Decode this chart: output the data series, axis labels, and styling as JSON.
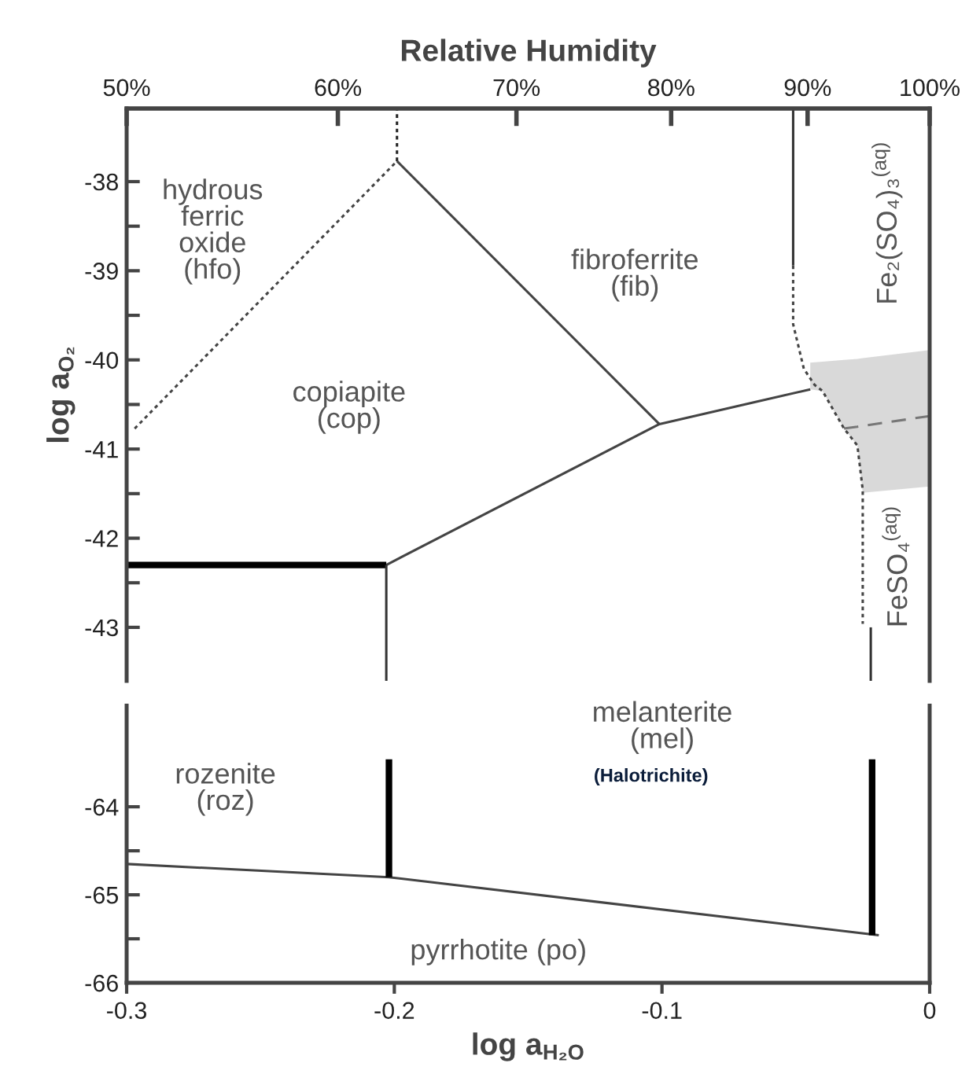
{
  "chart_data": [
    {
      "type": "line",
      "x2label": "Relative Humidity",
      "ylabel": "log a$_{O₂}$",
      "tick_labels": "y",
      "xlim": [
        -0.3,
        0
      ],
      "ylim": [
        -43.6,
        -37.18
      ],
      "log": "x2",
      "x2lim": [
        50,
        100
      ],
      "x2ticks": [
        {
          "value": 50,
          "label": "50%"
        },
        {
          "value": 60,
          "label": "60%"
        },
        {
          "value": 70,
          "label": "70%"
        },
        {
          "value": 80,
          "label": "80%"
        },
        {
          "value": 90,
          "label": "90%"
        },
        {
          "value": 100,
          "label": "100%"
        }
      ],
      "yticks": [
        -38,
        {
          "value": -38.5,
          "label": null
        },
        -39,
        {
          "value": -39.5,
          "label": null
        },
        -40,
        {
          "value": -40.5,
          "label": null
        },
        -41,
        {
          "value": -41.5,
          "label": null
        },
        -42,
        {
          "value": -42.5,
          "label": null
        },
        -43
      ],
      "series": [
        {
          "color": "#777777",
          "line_style": "dashed",
          "x": [
            -0.0446,
            -0.04,
            -0.032,
            -0.027,
            -0.025,
            0
          ],
          "values": [
            null,
            null,
            -40.77,
            -40.75,
            -40.74,
            -40.63
          ],
          "upper": [
            -40.03,
            -40.02,
            -40.0,
            -39.99,
            -39.98,
            -39.89
          ],
          "lower": [
            -40.33,
            -40.35,
            -40.77,
            -40.96,
            -41.49,
            -41.42
          ]
        },
        {
          "color": "#444444",
          "line_style": "dotted",
          "x": [
            -0.297,
            -0.199
          ],
          "values": [
            -40.77,
            -37.77
          ]
        },
        {
          "color": "#222222",
          "line_style": "dotted",
          "x": [
            -0.199,
            -0.199
          ],
          "values": [
            -37.77,
            -37.18
          ]
        },
        {
          "color": "#444444",
          "line_style": "solid",
          "x": [
            -0.199,
            -0.101,
            -0.0446
          ],
          "values": [
            -37.77,
            -40.72,
            -40.33
          ]
        },
        {
          "color": "#444444",
          "line_style": "solid",
          "x": [
            -0.101,
            -0.203
          ],
          "values": [
            -40.72,
            -42.3
          ]
        },
        {
          "color": "#000000",
          "line_style": "solid",
          "x": [
            -0.3,
            -0.203
          ],
          "values": [
            -42.3,
            -42.3
          ]
        },
        {
          "color": "#333333",
          "line_style": "solid",
          "x": [
            -0.203,
            -0.203
          ],
          "values": [
            -42.3,
            -43.6
          ]
        },
        {
          "color": "#333333",
          "line_style": "solid",
          "x": [
            -0.051,
            -0.051
          ],
          "values": [
            -37.18,
            -38.94
          ]
        },
        {
          "color": "#444444",
          "line_style": "dotted",
          "x": [
            -0.051,
            -0.051,
            -0.047,
            -0.043,
            -0.04,
            -0.032,
            -0.027,
            -0.025,
            -0.025
          ],
          "values": [
            -38.94,
            -39.6,
            -40.1,
            -40.28,
            -40.35,
            -40.77,
            -40.96,
            -41.46,
            -42.96
          ]
        },
        {
          "color": "#333333",
          "line_style": "solid",
          "x": [
            -0.022,
            -0.022
          ],
          "values": [
            -43.0,
            -43.6
          ]
        }
      ],
      "annotations": [
        "hydrous\nferric\noxide\n(hfo)",
        "fibroferrite\n(fib)",
        "copiapite\n(cop)",
        "Fe₂(SO₄)₃$^{(aq)}$",
        "FeSO₄$^{(aq)}$"
      ]
    },
    {
      "type": "line",
      "xlabel": "log a$_{H₂O}$",
      "xlim": [
        -0.3,
        0
      ],
      "ylim": [
        -66,
        -62.85
      ],
      "xticks": [
        -0.3,
        -0.2,
        -0.1,
        0
      ],
      "yticks": [
        -64,
        {
          "value": -64.5,
          "label": null
        },
        -65,
        {
          "value": -65.5,
          "label": null
        },
        -66
      ],
      "series": [
        {
          "color": "#444444",
          "line_style": "solid",
          "x": [
            -0.3,
            -0.202,
            -0.019
          ],
          "values": [
            -64.65,
            -64.8,
            -65.46
          ]
        },
        {
          "color": "#000000",
          "line_style": "solid",
          "x": [
            -0.202,
            -0.202
          ],
          "values": [
            -63.46,
            -64.8
          ]
        },
        {
          "color": "#000000",
          "line_style": "solid",
          "x": [
            -0.0215,
            -0.0215
          ],
          "values": [
            -63.46,
            -65.46
          ]
        }
      ],
      "annotations": [
        "melanterite\n(mel)",
        "(Halotrichite)",
        "rozenite\n(roz)",
        "pyrrhotite (po)"
      ]
    }
  ]
}
